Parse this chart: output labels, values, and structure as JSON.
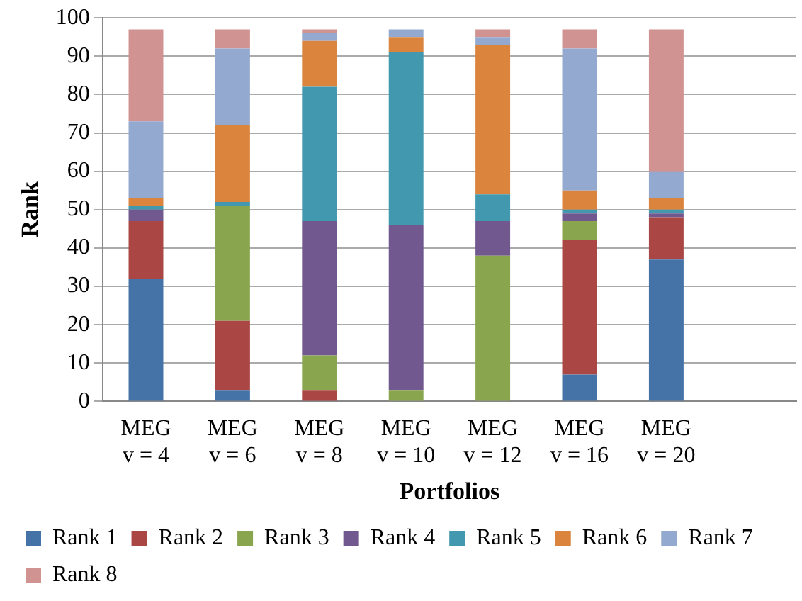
{
  "chart_data": {
    "type": "bar",
    "stacked": true,
    "xlabel": "Portfolios",
    "ylabel": "Rank",
    "categories": [
      "MEG\nv = 4",
      "MEG\nv = 6",
      "MEG\nv = 8",
      "MEG\nv = 10",
      "MEG\nv = 12",
      "MEG\nv = 16",
      "MEG\nv = 20",
      null
    ],
    "series": [
      {
        "name": "Rank 1",
        "color": "#4572a7",
        "values": [
          32,
          3,
          0,
          0,
          0,
          7,
          37,
          null
        ]
      },
      {
        "name": "Rank 2",
        "color": "#aa4643",
        "values": [
          15,
          18,
          3,
          0,
          0,
          35,
          11,
          null
        ]
      },
      {
        "name": "Rank 3",
        "color": "#89a54e",
        "values": [
          0,
          30,
          9,
          3,
          38,
          5,
          0,
          null
        ]
      },
      {
        "name": "Rank 4",
        "color": "#71588f",
        "values": [
          3,
          0,
          35,
          43,
          9,
          2,
          1,
          null
        ]
      },
      {
        "name": "Rank 5",
        "color": "#4198af",
        "values": [
          1,
          1,
          35,
          45,
          7,
          1,
          1,
          null
        ]
      },
      {
        "name": "Rank 6",
        "color": "#db843d",
        "values": [
          2,
          20,
          12,
          4,
          39,
          5,
          3,
          null
        ]
      },
      {
        "name": "Rank 7",
        "color": "#93a9cf",
        "values": [
          20,
          20,
          2,
          2,
          2,
          37,
          7,
          null
        ]
      },
      {
        "name": "Rank 8",
        "color": "#d19392",
        "values": [
          24,
          5,
          1,
          0,
          2,
          5,
          37,
          null
        ]
      }
    ],
    "ylim": [
      0,
      100
    ],
    "yticks": [
      0,
      10,
      20,
      30,
      40,
      50,
      60,
      70,
      80,
      90,
      100
    ],
    "grid": "y",
    "legend": "bottom"
  }
}
